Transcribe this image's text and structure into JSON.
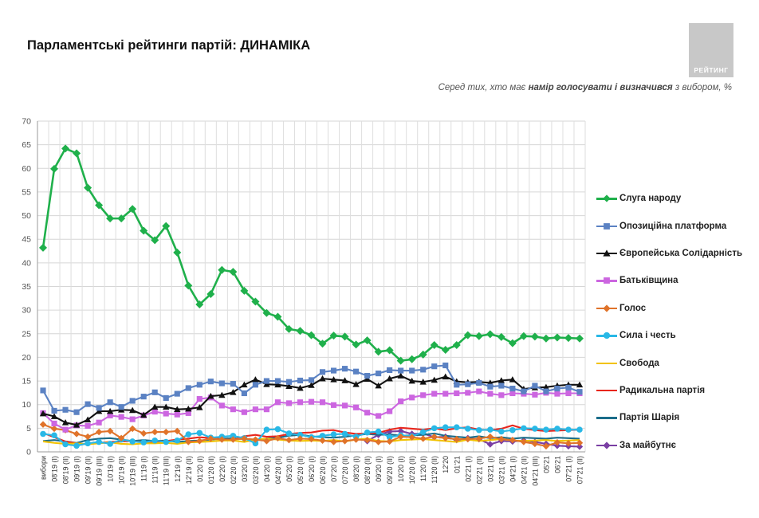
{
  "header": {
    "title": "Парламентські рейтинги партій: ДИНАМІКА",
    "subtitle_prefix": "Серед тих, хто має ",
    "subtitle_bold": "намір голосувати і визначився",
    "subtitle_suffix": " з вибором, %",
    "logo_text": "РЕЙТИНГ"
  },
  "chart_data": {
    "type": "line",
    "title": "Парламентські рейтинги партій: ДИНАМІКА",
    "ylabel": "",
    "xlabel": "",
    "ylim": [
      0,
      70
    ],
    "yticks": [
      0,
      5,
      10,
      15,
      20,
      25,
      30,
      35,
      40,
      45,
      50,
      55,
      60,
      65,
      70
    ],
    "grid": true,
    "legend_position": "right",
    "categories": [
      "вибори",
      "08'19 (I)",
      "08'19 (II)",
      "09'19 (I)",
      "09'19 (II)",
      "09'19 (III)",
      "10'19 (I)",
      "10'19 (II)",
      "10'19 (III)",
      "11'19 (I)",
      "11'19 (II)",
      "11'19 (III)",
      "12'19 (I)",
      "12'19 (II)",
      "01'20 (I)",
      "01'20 (II)",
      "02'20 (I)",
      "02'20 (II)",
      "03'20 (I)",
      "03'20 (II)",
      "04'20 (I)",
      "04'20 (II)",
      "05'20 (I)",
      "05'20 (II)",
      "06'20 (I)",
      "06'20 (II)",
      "07'20 (I)",
      "07'20 (II)",
      "08'20 (I)",
      "08'20 (II)",
      "09'20 (I)",
      "09'20 (II)",
      "10'20 (I)",
      "10'20 (II)",
      "11'20 (I)",
      "11'20 (II)",
      "12'20",
      "01'21",
      "02'21 (I)",
      "02'21 (II)",
      "03'21 (I)",
      "03'21 (II)",
      "04'21 (I)",
      "04'21 (II)",
      "04'21 (III)",
      "05'21",
      "06'21",
      "07'21 (I)",
      "07'21 (II)"
    ],
    "series": [
      {
        "name": "Слуга народу",
        "color": "#1fb04b",
        "marker": "diamond",
        "values": [
          43.2,
          59.9,
          64.2,
          63.2,
          55.9,
          52.2,
          49.4,
          49.4,
          51.4,
          46.8,
          44.8,
          47.8,
          42.2,
          35.2,
          31.2,
          33.4,
          38.5,
          38.1,
          34.1,
          31.8,
          29.4,
          28.6,
          26.0,
          25.6,
          24.7,
          22.9,
          24.6,
          24.4,
          22.7,
          23.6,
          21.2,
          21.5,
          19.3,
          19.6,
          20.6,
          22.6,
          21.6,
          22.6,
          24.7,
          24.5,
          24.9,
          24.3,
          23.0,
          24.5,
          24.4,
          24.0,
          24.2,
          24.1,
          24.0
        ]
      },
      {
        "name": "Опозиційна платформа",
        "color": "#5b82c3",
        "marker": "square",
        "values": [
          13.0,
          8.7,
          8.9,
          8.4,
          10.1,
          9.3,
          10.5,
          9.5,
          10.8,
          11.7,
          12.6,
          11.4,
          12.3,
          13.5,
          14.2,
          14.9,
          14.5,
          14.4,
          12.4,
          14.2,
          15.0,
          15.0,
          14.8,
          15.1,
          15.2,
          16.9,
          17.2,
          17.6,
          17.0,
          16.1,
          16.6,
          17.3,
          17.2,
          17.2,
          17.4,
          18.1,
          18.3,
          14.2,
          14.3,
          14.6,
          13.8,
          14.0,
          13.4,
          12.8,
          14.0,
          12.8,
          13.4,
          13.6,
          12.7
        ]
      },
      {
        "name": "Європейська Солідарність",
        "color": "#111111",
        "marker": "triangle",
        "values": [
          8.1,
          7.5,
          6.2,
          5.7,
          6.8,
          8.6,
          8.6,
          8.9,
          8.8,
          7.8,
          9.5,
          9.5,
          9.0,
          9.1,
          9.4,
          11.8,
          12.0,
          12.6,
          14.2,
          15.3,
          14.3,
          14.2,
          13.9,
          13.5,
          14.1,
          15.5,
          15.3,
          15.1,
          14.3,
          15.4,
          14.0,
          15.5,
          16.1,
          15.0,
          14.8,
          15.2,
          15.9,
          14.9,
          14.7,
          14.8,
          14.6,
          15.1,
          15.3,
          13.3,
          13.6,
          13.7,
          14.0,
          14.2,
          14.2
        ]
      },
      {
        "name": "Батьківщина",
        "color": "#cc66e0",
        "marker": "square",
        "values": [
          8.2,
          6.0,
          4.7,
          5.6,
          5.5,
          6.2,
          7.7,
          7.4,
          6.9,
          7.7,
          8.5,
          8.1,
          7.9,
          8.2,
          11.2,
          11.5,
          9.8,
          9.0,
          8.4,
          9.0,
          9.0,
          10.5,
          10.3,
          10.5,
          10.6,
          10.5,
          9.9,
          9.8,
          9.4,
          8.3,
          7.6,
          8.6,
          10.7,
          11.5,
          12.0,
          12.3,
          12.3,
          12.4,
          12.5,
          12.8,
          12.3,
          12.0,
          12.4,
          12.3,
          12.1,
          12.5,
          12.3,
          12.4,
          12.4
        ]
      },
      {
        "name": "Голос",
        "color": "#e0732a",
        "marker": "diamond",
        "values": [
          5.8,
          4.9,
          4.6,
          3.8,
          3.2,
          4.2,
          4.4,
          2.9,
          4.9,
          3.9,
          4.2,
          4.2,
          4.4,
          2.1,
          2.3,
          2.8,
          2.6,
          2.6,
          2.8,
          2.6,
          2.3,
          2.9,
          2.5,
          2.8,
          2.7,
          2.4,
          2.1,
          2.3,
          2.6,
          2.5,
          2.1,
          2.2,
          3.2,
          3.1,
          2.8,
          3.2,
          2.9,
          2.7,
          2.7,
          2.8,
          3.2,
          2.7,
          2.5,
          2.1,
          1.7,
          1.2,
          2.0,
          1.8,
          1.9
        ]
      },
      {
        "name": "Сила і честь",
        "color": "#29b8e6",
        "marker": "circle",
        "values": [
          3.8,
          3.5,
          1.6,
          1.3,
          1.8,
          2.1,
          1.7,
          2.6,
          2.2,
          2.0,
          2.4,
          2.1,
          2.4,
          3.7,
          4.0,
          3.0,
          3.2,
          3.4,
          2.9,
          1.8,
          4.7,
          4.8,
          3.9,
          3.6,
          3.1,
          3.4,
          3.7,
          3.8,
          3.2,
          4.1,
          4.3,
          3.1,
          3.5,
          3.3,
          4.2,
          5.0,
          5.2,
          5.2,
          4.9,
          4.6,
          4.7,
          4.3,
          4.6,
          5.0,
          4.9,
          4.7,
          4.9,
          4.7,
          4.7
        ]
      },
      {
        "name": "Свобода",
        "color": "#f2c200",
        "marker": "none",
        "values": [
          2.2,
          1.9,
          1.7,
          1.8,
          1.6,
          1.8,
          2.0,
          1.7,
          1.6,
          1.8,
          1.8,
          1.9,
          1.7,
          2.0,
          2.1,
          2.2,
          2.4,
          2.4,
          2.1,
          2.6,
          2.8,
          2.6,
          2.4,
          2.3,
          2.4,
          2.3,
          2.5,
          2.2,
          2.6,
          2.8,
          2.3,
          2.2,
          2.5,
          2.6,
          2.7,
          2.5,
          2.3,
          2.1,
          2.6,
          2.3,
          2.5,
          2.7,
          2.4,
          2.3,
          2.4,
          2.5,
          2.3,
          2.4,
          2.5
        ]
      },
      {
        "name": "Радикальна партія",
        "color": "#e8261c",
        "marker": "none",
        "values": [
          4.0,
          3.1,
          2.2,
          1.8,
          1.6,
          1.9,
          2.1,
          2.2,
          2.3,
          2.0,
          2.1,
          2.3,
          2.6,
          2.8,
          3.1,
          2.9,
          2.7,
          2.5,
          3.3,
          3.6,
          3.2,
          3.3,
          3.8,
          4.0,
          4.1,
          4.5,
          4.6,
          4.1,
          3.8,
          3.9,
          4.0,
          4.7,
          5.1,
          4.9,
          4.7,
          5.0,
          4.6,
          5.0,
          5.2,
          4.7,
          4.6,
          4.9,
          5.6,
          4.9,
          4.6,
          4.4,
          4.5,
          4.6,
          4.7
        ]
      },
      {
        "name": "Партія Шарія",
        "color": "#1b6d8a",
        "marker": "none",
        "values": [
          2.3,
          2.5,
          2.2,
          1.9,
          2.5,
          2.8,
          2.9,
          2.6,
          2.3,
          2.5,
          2.3,
          2.4,
          2.1,
          2.3,
          2.4,
          2.6,
          2.8,
          2.9,
          2.7,
          2.5,
          2.8,
          3.0,
          3.4,
          3.6,
          3.3,
          3.1,
          3.0,
          3.2,
          3.5,
          3.8,
          3.6,
          3.7,
          3.4,
          3.5,
          3.6,
          3.9,
          3.4,
          3.2,
          3.0,
          3.3,
          2.9,
          3.1,
          2.8,
          3.0,
          2.9,
          2.8,
          3.0,
          2.9,
          2.8
        ]
      },
      {
        "name": "За майбутнє",
        "color": "#7a3fa3",
        "marker": "diamond",
        "values": [
          null,
          null,
          null,
          null,
          null,
          null,
          null,
          null,
          null,
          null,
          null,
          null,
          null,
          null,
          null,
          null,
          null,
          null,
          null,
          null,
          null,
          null,
          null,
          null,
          null,
          null,
          null,
          null,
          null,
          2.3,
          3.6,
          4.3,
          4.4,
          3.8,
          3.9,
          3.1,
          3.2,
          2.5,
          2.9,
          2.7,
          1.6,
          2.3,
          2.2,
          2.4,
          2.1,
          1.7,
          1.3,
          1.2,
          1.1
        ]
      }
    ]
  }
}
